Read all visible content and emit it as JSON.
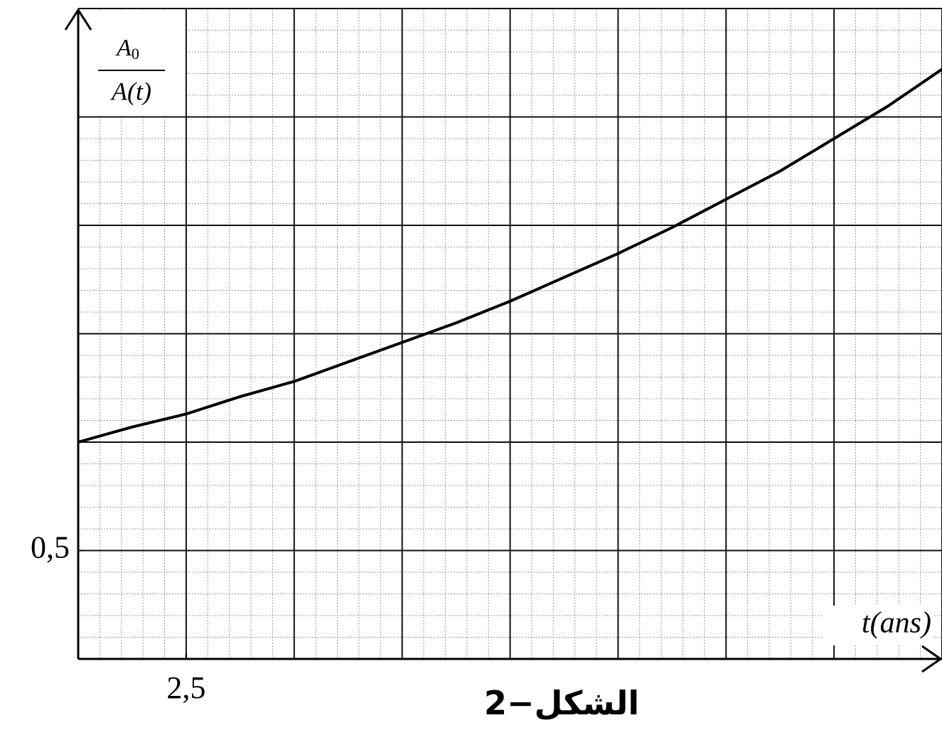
{
  "chart_data": {
    "type": "line",
    "ylabel": {
      "numerator": "A",
      "numerator_sub": "0",
      "denominator": "A(t)"
    },
    "xlabel": "t(ans)",
    "caption": "الشكل−2",
    "x": [
      0,
      1.25,
      2.5,
      3.75,
      5,
      6.25,
      7.5,
      8.75,
      10,
      11.25,
      12.5,
      13.75,
      15,
      16.25,
      17.5,
      18.75,
      20
    ],
    "series": [
      {
        "color": "#000000",
        "values": [
          1.0,
          1.07,
          1.13,
          1.21,
          1.28,
          1.37,
          1.46,
          1.55,
          1.65,
          1.76,
          1.87,
          1.99,
          2.12,
          2.25,
          2.4,
          2.55,
          2.72
        ]
      }
    ],
    "xlim": [
      0,
      20
    ],
    "ylim": [
      0,
      3
    ],
    "xticks": [
      {
        "value": 2.5,
        "label": "2,5"
      }
    ],
    "yticks": [
      {
        "value": 0.5,
        "label": "0,5"
      }
    ],
    "grid": {
      "major_x": 2.5,
      "major_y": 0.5,
      "minor_per_major": 5
    }
  }
}
